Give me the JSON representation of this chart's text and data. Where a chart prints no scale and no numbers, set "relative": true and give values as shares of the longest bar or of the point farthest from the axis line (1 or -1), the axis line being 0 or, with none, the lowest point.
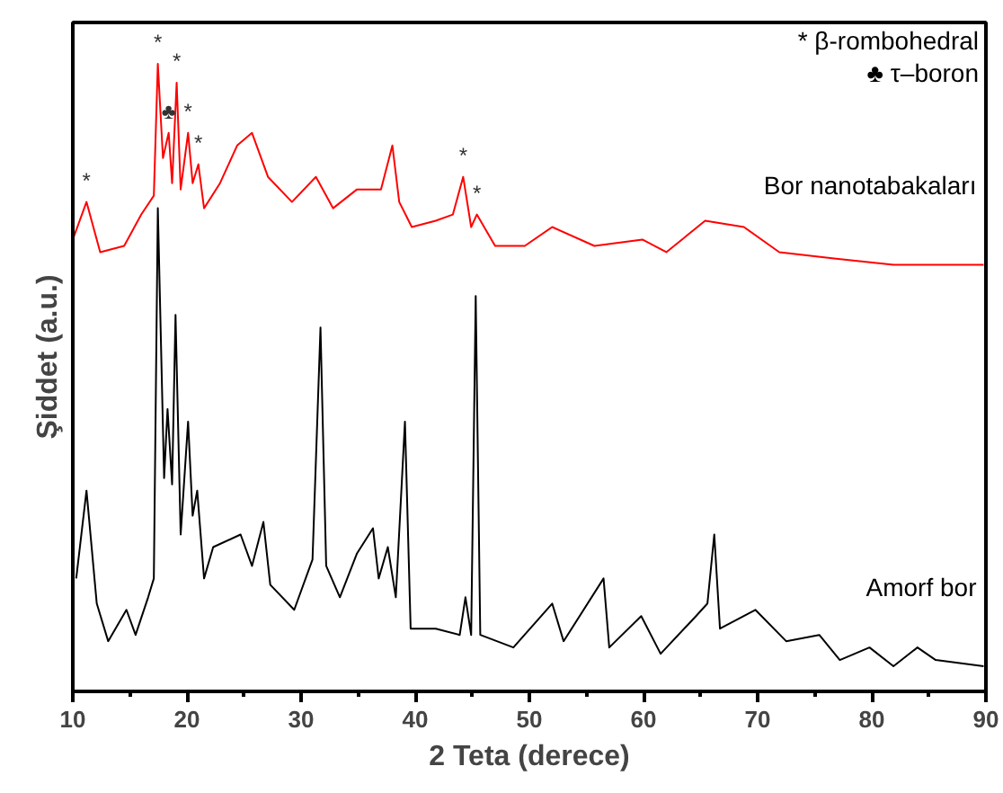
{
  "chart_data": {
    "type": "line",
    "relative": true,
    "xlabel": "2 Teta (derece)",
    "ylabel": "Şiddet (a.u.)",
    "xlim": [
      10,
      90
    ],
    "xticks": [
      10,
      20,
      30,
      40,
      50,
      60,
      70,
      80,
      90
    ],
    "grid": false,
    "series": [
      {
        "name": "Bor nanotabakaları",
        "color": "#ff0000",
        "x": [
          10,
          11.2,
          12.4,
          14.5,
          16.0,
          17.1,
          17.45,
          17.9,
          18.4,
          18.7,
          19.1,
          19.45,
          20.1,
          20.5,
          21.0,
          21.5,
          22.9,
          24.4,
          25.7,
          27.1,
          29.2,
          31.3,
          32.8,
          34.9,
          37.0,
          38.0,
          38.6,
          39.7,
          41.8,
          43.3,
          44.2,
          44.9,
          45.4,
          47.0,
          49.6,
          52.0,
          55.7,
          59.9,
          62.0,
          65.4,
          68.8,
          71.9,
          76.7,
          81.9,
          86.6,
          89.8
        ],
        "values": [
          0.72,
          0.78,
          0.7,
          0.71,
          0.76,
          0.79,
          1.0,
          0.85,
          0.89,
          0.81,
          0.97,
          0.8,
          0.89,
          0.81,
          0.84,
          0.77,
          0.81,
          0.87,
          0.89,
          0.82,
          0.78,
          0.82,
          0.77,
          0.8,
          0.8,
          0.87,
          0.78,
          0.74,
          0.75,
          0.76,
          0.82,
          0.74,
          0.76,
          0.71,
          0.71,
          0.74,
          0.71,
          0.72,
          0.7,
          0.75,
          0.74,
          0.7,
          0.69,
          0.68,
          0.68,
          0.68
        ]
      },
      {
        "name": "Amorf bor",
        "color": "#000000",
        "x": [
          10.3,
          11.2,
          12.1,
          13.1,
          14.7,
          15.5,
          16.6,
          17.1,
          17.45,
          18.0,
          18.3,
          18.7,
          19.0,
          19.45,
          20.1,
          20.5,
          20.9,
          21.5,
          22.3,
          24.7,
          25.7,
          26.7,
          27.3,
          29.4,
          31.0,
          31.7,
          32.2,
          33.4,
          34.9,
          36.3,
          36.8,
          37.6,
          38.3,
          39.1,
          39.6,
          41.8,
          43.9,
          44.4,
          44.9,
          45.3,
          45.7,
          48.6,
          52.0,
          53.0,
          56.5,
          57.0,
          59.8,
          61.5,
          64.6,
          65.6,
          66.2,
          66.7,
          69.8,
          72.5,
          75.4,
          77.2,
          79.8,
          81.9,
          84.0,
          85.6,
          89.8
        ],
        "values": [
          0.18,
          0.32,
          0.14,
          0.08,
          0.13,
          0.09,
          0.15,
          0.18,
          0.77,
          0.34,
          0.45,
          0.33,
          0.6,
          0.25,
          0.43,
          0.28,
          0.32,
          0.18,
          0.23,
          0.25,
          0.2,
          0.27,
          0.17,
          0.13,
          0.21,
          0.58,
          0.2,
          0.15,
          0.22,
          0.26,
          0.18,
          0.23,
          0.15,
          0.43,
          0.1,
          0.1,
          0.09,
          0.15,
          0.09,
          0.63,
          0.09,
          0.07,
          0.14,
          0.08,
          0.18,
          0.07,
          0.12,
          0.06,
          0.12,
          0.14,
          0.25,
          0.1,
          0.13,
          0.08,
          0.09,
          0.05,
          0.07,
          0.04,
          0.07,
          0.05,
          0.04
        ]
      }
    ],
    "annotations": [
      {
        "text": "*",
        "x": 11.2,
        "y": 0.78
      },
      {
        "text": "*",
        "x": 17.45,
        "y": 1.0
      },
      {
        "text": "♣",
        "x": 18.4,
        "y": 0.89
      },
      {
        "text": "*",
        "x": 19.1,
        "y": 0.97
      },
      {
        "text": "*",
        "x": 20.1,
        "y": 0.89
      },
      {
        "text": "*",
        "x": 21.0,
        "y": 0.84
      },
      {
        "text": "*",
        "x": 44.2,
        "y": 0.82
      },
      {
        "text": "*",
        "x": 45.4,
        "y": 0.76
      },
      "* β-rombohedral",
      "♣ τ–boron"
    ]
  }
}
